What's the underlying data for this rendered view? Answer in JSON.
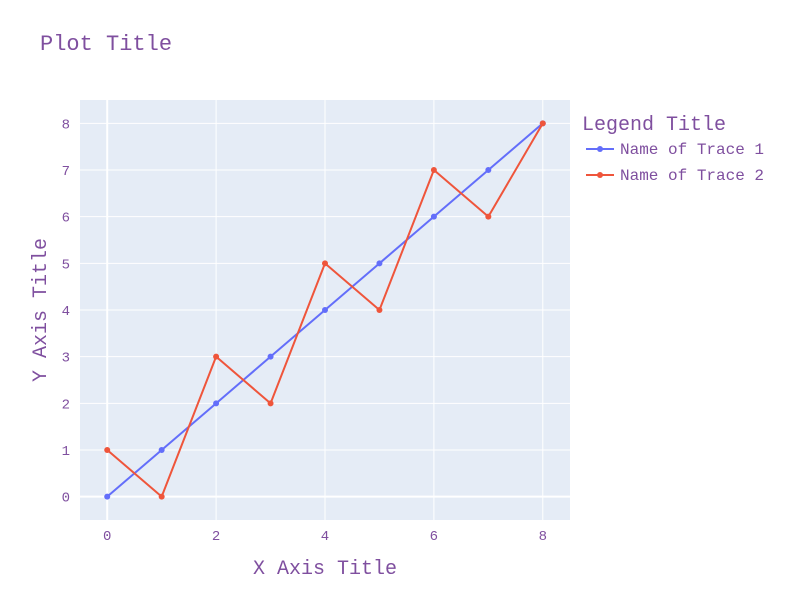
{
  "colors": {
    "text": "#7f4f9f",
    "tick_text": "#7f4f9f",
    "plot_bg": "#e5ecf6",
    "grid": "#ffffff",
    "trace1": "#636efa",
    "trace2": "#ef553b"
  },
  "chart_data": {
    "type": "line",
    "title": "Plot Title",
    "xlabel": "X Axis Title",
    "ylabel": "Y Axis Title",
    "xlim": [
      -0.5,
      8.5
    ],
    "ylim": [
      -0.5,
      8.5
    ],
    "xticks": [
      0,
      2,
      4,
      6,
      8
    ],
    "yticks": [
      0,
      1,
      2,
      3,
      4,
      5,
      6,
      7,
      8
    ],
    "grid": true,
    "legend_title": "Legend Title",
    "legend_position": "right",
    "x": [
      0,
      1,
      2,
      3,
      4,
      5,
      6,
      7,
      8
    ],
    "series": [
      {
        "name": "Name of Trace 1",
        "values": [
          0,
          1,
          2,
          3,
          4,
          5,
          6,
          7,
          8
        ],
        "mode": "lines+markers"
      },
      {
        "name": "Name of Trace 2",
        "values": [
          1,
          0,
          3,
          2,
          5,
          4,
          7,
          6,
          8
        ],
        "mode": "lines+markers"
      }
    ]
  }
}
